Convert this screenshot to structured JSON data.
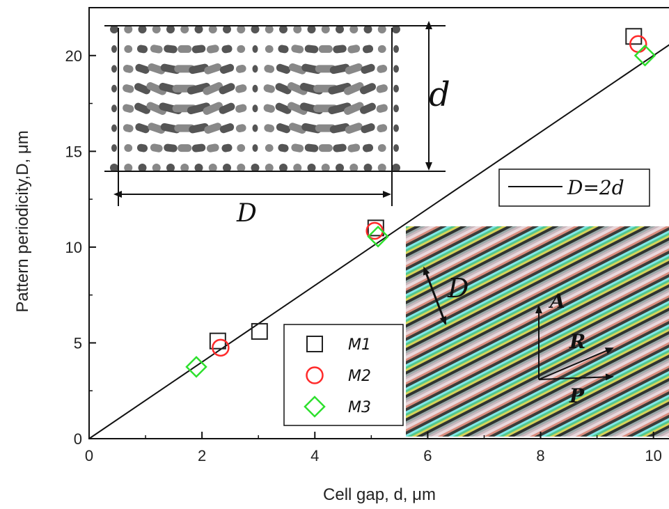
{
  "chart_data": {
    "type": "scatter",
    "xlabel": "Cell gap, d, μm",
    "ylabel": "Pattern periodicity,D, μm",
    "xlim": [
      0,
      10.3
    ],
    "ylim": [
      0,
      22.5
    ],
    "xticks": [
      "0",
      "2",
      "4",
      "6",
      "8",
      "10"
    ],
    "yticks": [
      "0",
      "5",
      "10",
      "15",
      "20"
    ],
    "grid": false,
    "legend_position": "center",
    "series": [
      {
        "name": "M1",
        "marker": "square",
        "color": "#222222",
        "points": [
          [
            2.28,
            5.1
          ],
          [
            3.02,
            5.6
          ],
          [
            5.08,
            11.0
          ],
          [
            9.65,
            21.0
          ]
        ]
      },
      {
        "name": "M2",
        "marker": "circle",
        "color": "#ff2a2a",
        "points": [
          [
            2.33,
            4.75
          ],
          [
            5.06,
            10.85
          ],
          [
            9.73,
            20.6
          ]
        ]
      },
      {
        "name": "M3",
        "marker": "diamond",
        "color": "#2ee02e",
        "points": [
          [
            1.9,
            3.75
          ],
          [
            5.12,
            10.55
          ],
          [
            9.85,
            20.0
          ]
        ]
      }
    ],
    "fit_line": {
      "label": "D=2d",
      "slope": 2,
      "intercept": 0
    },
    "insets": {
      "director_profile": {
        "labels": [
          "d",
          "D"
        ]
      },
      "micrograph": {
        "labels": [
          "D",
          "A",
          "R",
          "P"
        ]
      }
    }
  }
}
